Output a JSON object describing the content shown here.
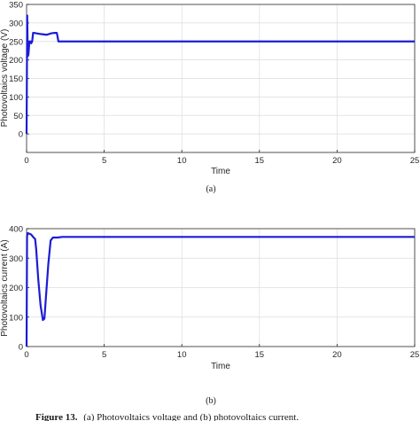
{
  "chart_data": [
    {
      "type": "line",
      "panel": "(a)",
      "ylabel": "Photovoltaics voltage (V)",
      "xlabel": "Time",
      "xlim": [
        0,
        25
      ],
      "ylim": [
        -50,
        350
      ],
      "xticks": [
        "0",
        "5",
        "10",
        "15",
        "20",
        "25"
      ],
      "yticks": [
        "0",
        "50",
        "100",
        "150",
        "200",
        "250",
        "300",
        "350"
      ],
      "grid": true,
      "series": [
        {
          "color": "#1c1cd6",
          "x": [
            0,
            0.04,
            0.08,
            0.12,
            0.18,
            0.26,
            0.3,
            0.36,
            0.42,
            0.5,
            0.9,
            1.3,
            1.6,
            1.8,
            1.95,
            2.05,
            2.1,
            5,
            10,
            15,
            20,
            25
          ],
          "y": [
            0,
            320,
            210,
            215,
            250,
            250,
            245,
            250,
            273,
            273,
            270,
            268,
            272,
            273,
            273,
            250,
            250,
            250,
            250,
            250,
            250,
            250
          ]
        }
      ]
    },
    {
      "type": "line",
      "panel": "(b)",
      "ylabel": "Photovoltaics current (A)",
      "xlabel": "Time",
      "xlim": [
        0,
        25
      ],
      "ylim": [
        0,
        400
      ],
      "xticks": [
        "0",
        "5",
        "10",
        "15",
        "20",
        "25"
      ],
      "yticks": [
        "0",
        "100",
        "200",
        "300",
        "400"
      ],
      "grid": true,
      "series": [
        {
          "color": "#1c1cd6",
          "x": [
            0,
            0.03,
            0.08,
            0.3,
            0.45,
            0.55,
            0.62,
            0.75,
            0.9,
            1.05,
            1.15,
            1.25,
            1.4,
            1.55,
            1.7,
            2.0,
            2.3,
            5,
            10,
            15,
            20,
            25
          ],
          "y": [
            0,
            375,
            385,
            380,
            370,
            365,
            330,
            230,
            140,
            90,
            95,
            170,
            280,
            360,
            370,
            370,
            372,
            372,
            372,
            372,
            372,
            372
          ]
        }
      ]
    }
  ],
  "labels": {
    "a": "(a)",
    "b": "(b)"
  },
  "caption": {
    "prefix": "Figure 13.",
    "text": "(a) Photovoltaics voltage and (b) photovoltaics current."
  }
}
